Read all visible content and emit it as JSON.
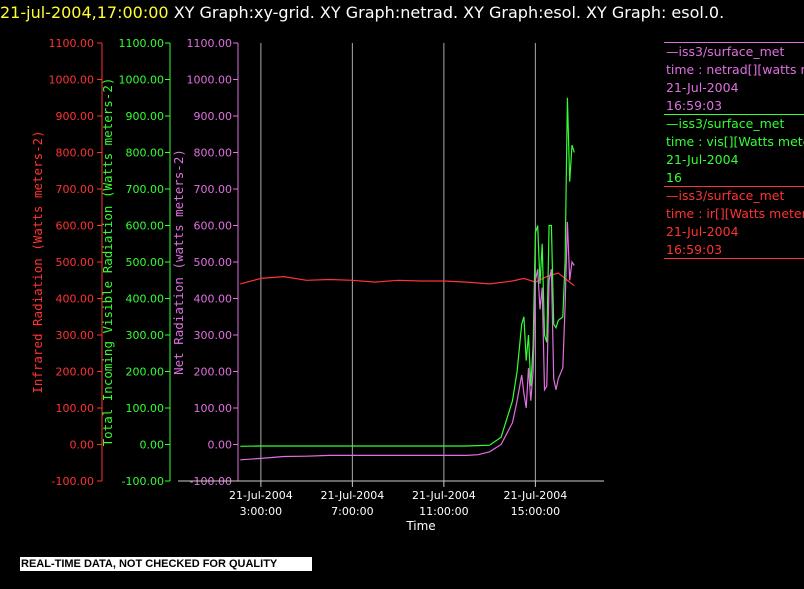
{
  "header": {
    "timestamp": "21-jul-2004,17:00:00",
    "text": "  XY Graph:xy-grid.  XY Graph:netrad.  XY Graph:esol.  XY Graph: esol.0."
  },
  "legend": [
    {
      "line1": "—iss3/surface_met",
      "line2": "time : netrad[][watts me",
      "line3": "21-Jul-2004",
      "line4": "16:59:03",
      "color": "#e070e0"
    },
    {
      "line1": "—iss3/surface_met",
      "line2": "time : vis[][Watts meter",
      "line3": "21-Jul-2004",
      "line4": "16",
      "color": "#33ff33"
    },
    {
      "line1": "—iss3/surface_met",
      "line2": "time : ir[][Watts meters",
      "line3": "21-Jul-2004",
      "line4": "16:59:03",
      "color": "#ff3333"
    }
  ],
  "disclaimer": "REAL-TIME DATA, NOT CHECKED FOR QUALITY",
  "chart_data": {
    "type": "line",
    "xlabel": "Time",
    "x_ticks": [
      {
        "t": 3,
        "date": "21-Jul-2004",
        "time": "3:00:00"
      },
      {
        "t": 7,
        "date": "21-Jul-2004",
        "time": "7:00:00"
      },
      {
        "t": 11,
        "date": "21-Jul-2004",
        "time": "11:00:00"
      },
      {
        "t": 15,
        "date": "21-Jul-2004",
        "time": "15:00:00"
      }
    ],
    "xlim": [
      "21-Jul-2004 2:00",
      "21-Jul-2004 18:00"
    ],
    "y_axes": [
      {
        "label": "Infrared Radiation (Watts meters-2)",
        "color": "#ff3333",
        "ylim": [
          -100,
          1100
        ]
      },
      {
        "label": "Total Incoming Visible Radiation (Watts meters-2)",
        "color": "#33ff33",
        "ylim": [
          -100,
          1100
        ]
      },
      {
        "label": "Net Radiation (watts meters-2)",
        "color": "#e070e0",
        "ylim": [
          -100,
          1100
        ]
      }
    ],
    "y_tick_labels": [
      "-100.00",
      "0.00",
      "100.00",
      "200.00",
      "300.00",
      "400.00",
      "500.00",
      "600.00",
      "700.00",
      "800.00",
      "900.00",
      "1000.00",
      "1100.00"
    ],
    "grid": "vertical at major time ticks",
    "series": [
      {
        "color": "#ff3333",
        "points": [
          [
            2.1,
            440
          ],
          [
            3,
            455
          ],
          [
            4,
            460
          ],
          [
            5,
            450
          ],
          [
            6,
            452
          ],
          [
            7,
            450
          ],
          [
            8,
            445
          ],
          [
            9,
            450
          ],
          [
            10,
            448
          ],
          [
            11,
            448
          ],
          [
            12,
            445
          ],
          [
            13,
            440
          ],
          [
            14,
            448
          ],
          [
            14.5,
            455
          ],
          [
            15,
            445
          ],
          [
            15.5,
            460
          ],
          [
            16,
            470
          ],
          [
            16.5,
            445
          ],
          [
            16.7,
            435
          ]
        ]
      },
      {
        "color": "#33ff33",
        "points": [
          [
            2.1,
            -5
          ],
          [
            3,
            -4
          ],
          [
            5,
            -4
          ],
          [
            7,
            -4
          ],
          [
            9,
            -4
          ],
          [
            11,
            -4
          ],
          [
            12,
            -4
          ],
          [
            13,
            -2
          ],
          [
            13.5,
            20
          ],
          [
            14,
            120
          ],
          [
            14.2,
            200
          ],
          [
            14.4,
            330
          ],
          [
            14.5,
            350
          ],
          [
            14.6,
            230
          ],
          [
            14.7,
            300
          ],
          [
            14.8,
            160
          ],
          [
            14.9,
            270
          ],
          [
            15,
            580
          ],
          [
            15.1,
            600
          ],
          [
            15.2,
            440
          ],
          [
            15.3,
            550
          ],
          [
            15.4,
            300
          ],
          [
            15.5,
            280
          ],
          [
            15.6,
            600
          ],
          [
            15.7,
            600
          ],
          [
            15.8,
            330
          ],
          [
            15.9,
            320
          ],
          [
            16,
            340
          ],
          [
            16.2,
            350
          ],
          [
            16.3,
            500
          ],
          [
            16.4,
            950
          ],
          [
            16.5,
            720
          ],
          [
            16.6,
            820
          ],
          [
            16.7,
            800
          ]
        ]
      },
      {
        "color": "#e070e0",
        "points": [
          [
            2.1,
            -42
          ],
          [
            3,
            -38
          ],
          [
            4,
            -33
          ],
          [
            5,
            -32
          ],
          [
            6,
            -30
          ],
          [
            7,
            -30
          ],
          [
            8,
            -30
          ],
          [
            9,
            -30
          ],
          [
            10,
            -30
          ],
          [
            11,
            -30
          ],
          [
            12,
            -30
          ],
          [
            12.5,
            -28
          ],
          [
            13,
            -20
          ],
          [
            13.5,
            0
          ],
          [
            14,
            60
          ],
          [
            14.2,
            120
          ],
          [
            14.4,
            190
          ],
          [
            14.5,
            140
          ],
          [
            14.6,
            100
          ],
          [
            14.7,
            210
          ],
          [
            14.8,
            120
          ],
          [
            14.9,
            200
          ],
          [
            15,
            450
          ],
          [
            15.1,
            480
          ],
          [
            15.2,
            370
          ],
          [
            15.3,
            430
          ],
          [
            15.4,
            150
          ],
          [
            15.5,
            160
          ],
          [
            15.6,
            450
          ],
          [
            15.7,
            480
          ],
          [
            15.8,
            180
          ],
          [
            15.9,
            150
          ],
          [
            16,
            180
          ],
          [
            16.2,
            210
          ],
          [
            16.3,
            380
          ],
          [
            16.4,
            610
          ],
          [
            16.5,
            450
          ],
          [
            16.6,
            500
          ],
          [
            16.7,
            490
          ]
        ]
      }
    ]
  }
}
